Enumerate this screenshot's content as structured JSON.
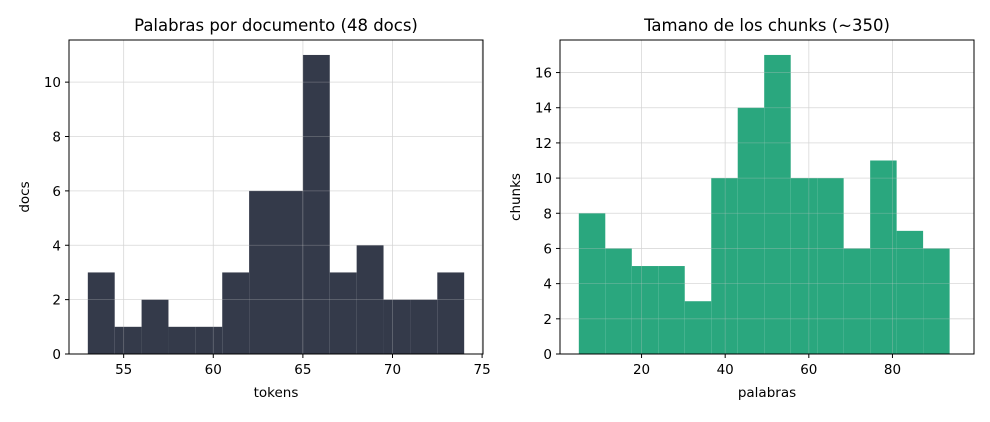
{
  "chart_data": [
    {
      "type": "bar",
      "subtype": "histogram",
      "title": "Palabras por documento (48 docs)",
      "xlabel": "tokens",
      "ylabel": "docs",
      "xlim": [
        51.95,
        75.05
      ],
      "ylim": [
        0,
        11.55
      ],
      "xticks": [
        55,
        60,
        65,
        70,
        75
      ],
      "yticks": [
        0,
        2,
        4,
        6,
        8,
        10
      ],
      "grid": true,
      "color": "#343a4a",
      "bins": [
        {
          "x0": 53.0,
          "x1": 54.5,
          "count": 3
        },
        {
          "x0": 54.5,
          "x1": 56.0,
          "count": 1
        },
        {
          "x0": 56.0,
          "x1": 57.5,
          "count": 2
        },
        {
          "x0": 57.5,
          "x1": 59.0,
          "count": 1
        },
        {
          "x0": 59.0,
          "x1": 60.5,
          "count": 1
        },
        {
          "x0": 60.5,
          "x1": 62.0,
          "count": 3
        },
        {
          "x0": 62.0,
          "x1": 63.5,
          "count": 6
        },
        {
          "x0": 63.5,
          "x1": 65.0,
          "count": 6
        },
        {
          "x0": 65.0,
          "x1": 66.5,
          "count": 11
        },
        {
          "x0": 66.5,
          "x1": 68.0,
          "count": 3
        },
        {
          "x0": 68.0,
          "x1": 69.5,
          "count": 4
        },
        {
          "x0": 69.5,
          "x1": 71.0,
          "count": 2
        },
        {
          "x0": 71.0,
          "x1": 72.5,
          "count": 2
        },
        {
          "x0": 72.5,
          "x1": 74.0,
          "count": 3
        }
      ]
    },
    {
      "type": "bar",
      "subtype": "histogram",
      "title": "Tamano de los chunks (~350)",
      "xlabel": "palabras",
      "ylabel": "chunks",
      "xlim": [
        0.5,
        99.5
      ],
      "ylim": [
        0,
        17.85
      ],
      "xticks": [
        20,
        40,
        60,
        80
      ],
      "yticks": [
        0,
        2,
        4,
        6,
        8,
        10,
        12,
        14,
        16
      ],
      "grid": true,
      "color": "#2aa77e",
      "bins": [
        {
          "x0": 5.0,
          "x1": 11.33,
          "count": 8
        },
        {
          "x0": 11.33,
          "x1": 17.67,
          "count": 6
        },
        {
          "x0": 17.67,
          "x1": 24.0,
          "count": 5
        },
        {
          "x0": 24.0,
          "x1": 30.33,
          "count": 5
        },
        {
          "x0": 30.33,
          "x1": 36.67,
          "count": 3
        },
        {
          "x0": 36.67,
          "x1": 43.0,
          "count": 10
        },
        {
          "x0": 43.0,
          "x1": 49.33,
          "count": 14
        },
        {
          "x0": 49.33,
          "x1": 55.67,
          "count": 17
        },
        {
          "x0": 55.67,
          "x1": 62.0,
          "count": 10
        },
        {
          "x0": 62.0,
          "x1": 68.33,
          "count": 10
        },
        {
          "x0": 68.33,
          "x1": 74.67,
          "count": 6
        },
        {
          "x0": 74.67,
          "x1": 81.0,
          "count": 11
        },
        {
          "x0": 81.0,
          "x1": 87.33,
          "count": 7
        },
        {
          "x0": 87.33,
          "x1": 93.67,
          "count": 6
        }
      ]
    }
  ]
}
